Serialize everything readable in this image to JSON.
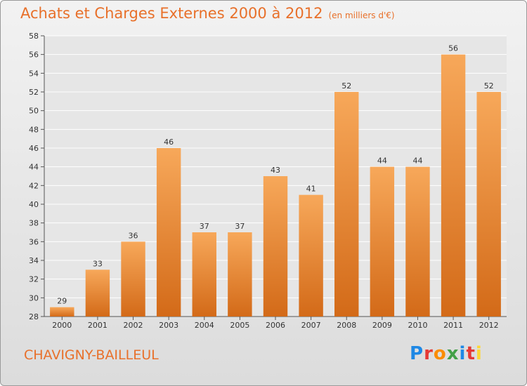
{
  "header": {
    "title": "Achats et Charges Externes 2000 à 2012",
    "unit": "(en milliers d'€)"
  },
  "footer": {
    "place": "CHAVIGNY-BAILLEUL",
    "brand": "Proxiti",
    "brand_colors": [
      "#1e88e5",
      "#e53935",
      "#fb8c00",
      "#43a047",
      "#1e88e5",
      "#e53935",
      "#fdd835"
    ]
  },
  "colors": {
    "bar_light": "#f7a85a",
    "bar_dark": "#d36a18",
    "title": "#e8702a"
  },
  "chart_data": {
    "type": "bar",
    "title": "Achats et Charges Externes 2000 à 2012",
    "subtitle": "(en milliers d'€)",
    "xlabel": "",
    "ylabel": "",
    "categories": [
      "2000",
      "2001",
      "2002",
      "2003",
      "2004",
      "2005",
      "2006",
      "2007",
      "2008",
      "2009",
      "2010",
      "2011",
      "2012"
    ],
    "values": [
      29,
      33,
      36,
      46,
      37,
      37,
      43,
      41,
      52,
      44,
      44,
      56,
      52
    ],
    "ylim": [
      28,
      58
    ],
    "yticks": [
      28,
      30,
      32,
      34,
      36,
      38,
      40,
      42,
      44,
      46,
      48,
      50,
      52,
      54,
      56,
      58
    ],
    "grid": true,
    "data_labels": true
  }
}
